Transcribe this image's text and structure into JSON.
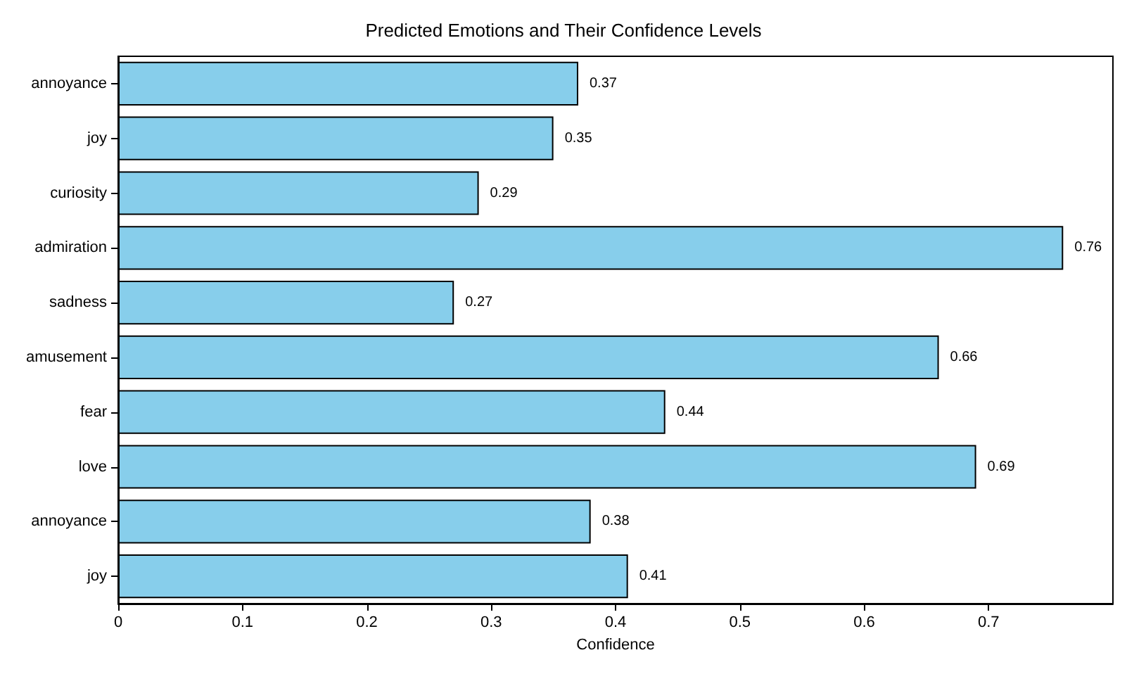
{
  "chart_data": {
    "type": "bar",
    "orientation": "horizontal",
    "title": "Predicted Emotions and Their Confidence Levels",
    "xlabel": "Confidence",
    "categories": [
      "annoyance",
      "joy",
      "curiosity",
      "admiration",
      "sadness",
      "amusement",
      "fear",
      "love",
      "annoyance",
      "joy"
    ],
    "values": [
      0.37,
      0.35,
      0.29,
      0.76,
      0.27,
      0.66,
      0.44,
      0.69,
      0.38,
      0.41
    ],
    "color": "#87ceeb",
    "data_labels": true,
    "grid": false,
    "xlim": [
      0,
      0.8
    ],
    "xticks": [
      0,
      0.1,
      0.2,
      0.3,
      0.4,
      0.5,
      0.6,
      0.7
    ]
  }
}
